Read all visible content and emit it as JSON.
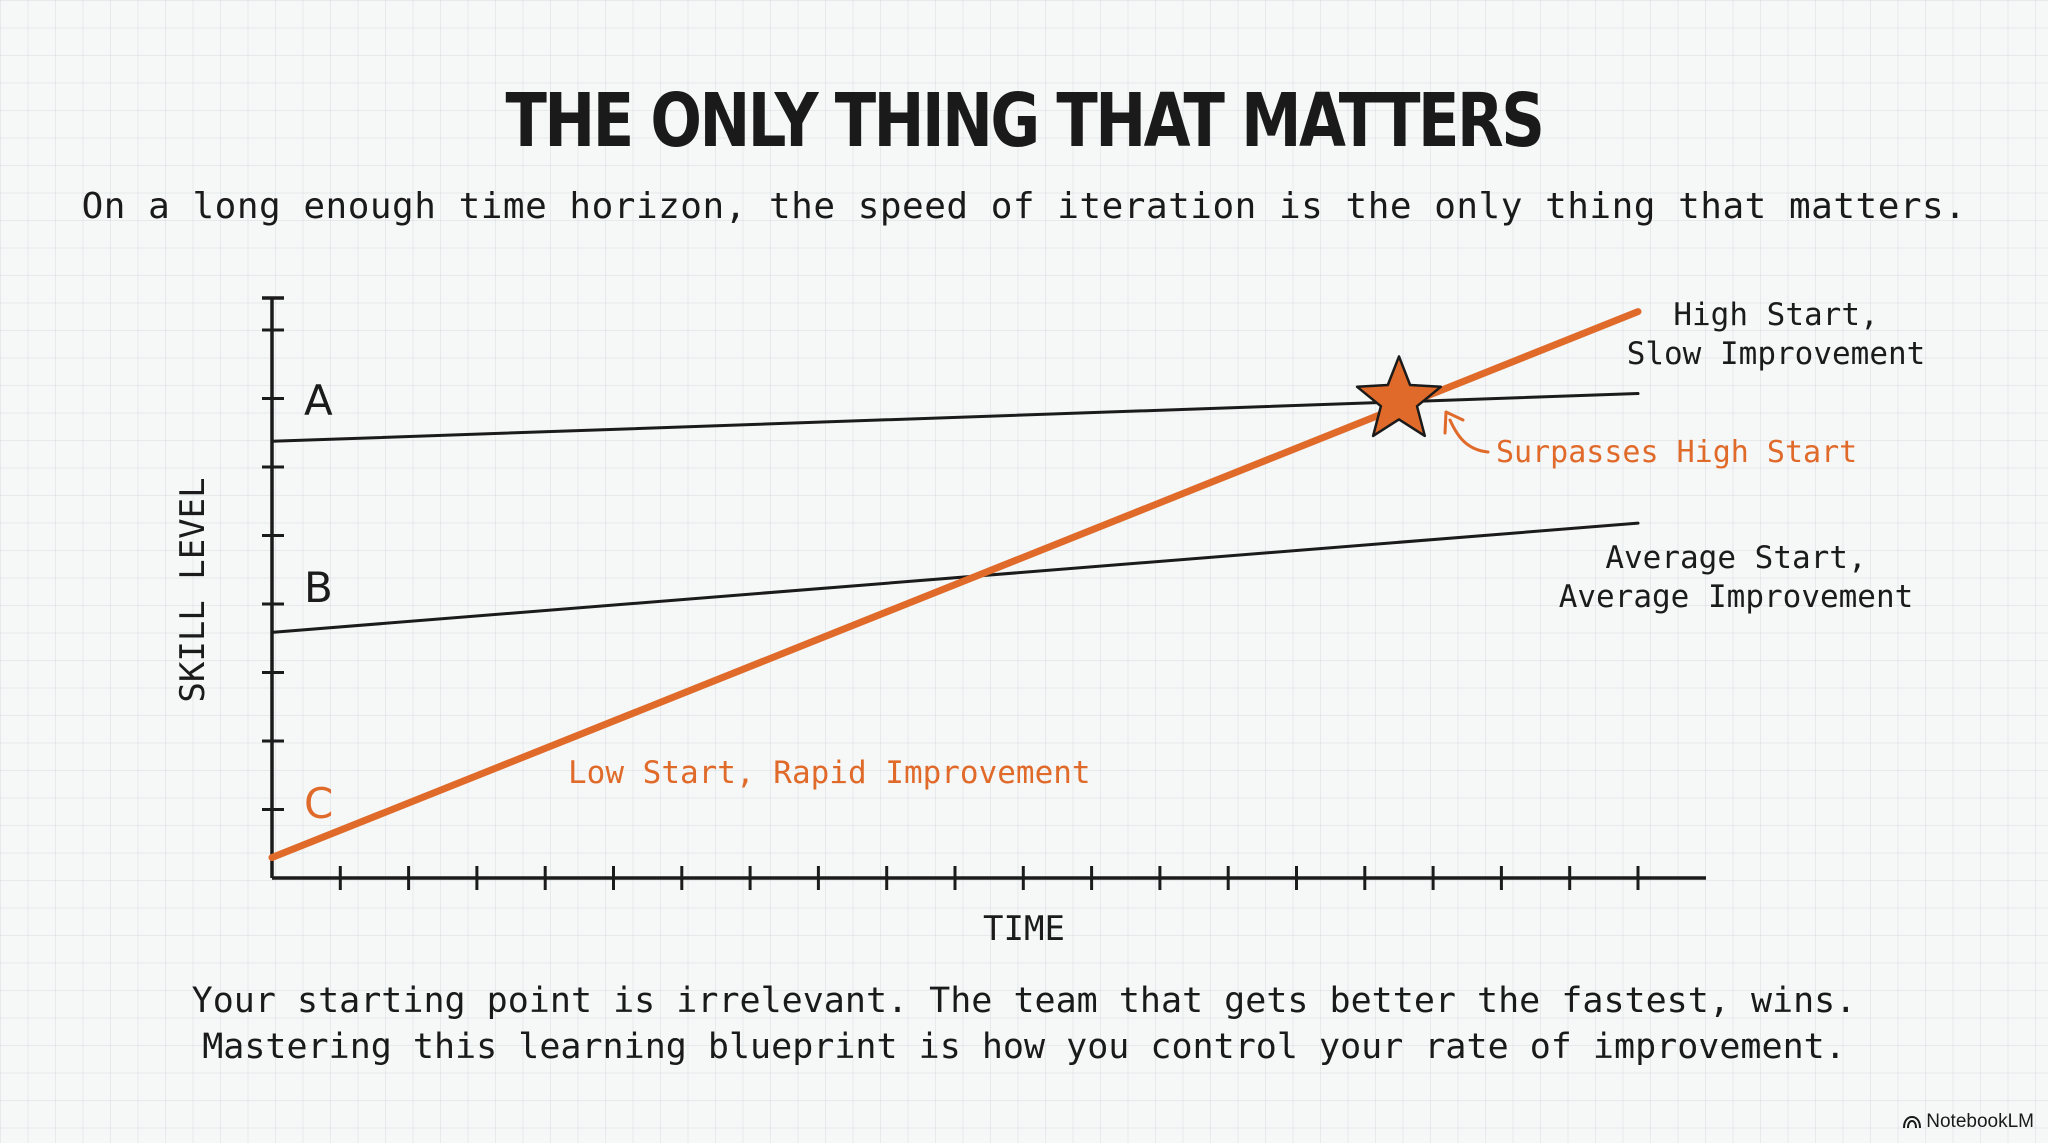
{
  "title": "THE ONLY THING THAT MATTERS",
  "subtitle": "On a long enough time horizon, the speed of iteration is the only thing that matters.",
  "footer": {
    "line1": "Your starting point is irrelevant. The team that gets better the fastest, wins.",
    "line2": "Mastering this learning blueprint is how you control your rate of improvement."
  },
  "brand": {
    "name": "NotebookLM",
    "icon": "notebooklm-logo-icon"
  },
  "colors": {
    "accent": "#e06a2a",
    "ink": "#1b1b1b",
    "background": "#f6f7f7"
  },
  "chart_data": {
    "type": "line",
    "xlabel": "TIME",
    "ylabel": "SKILL LEVEL",
    "xlim": [
      0,
      21
    ],
    "ylim": [
      0,
      8.5
    ],
    "x_ticks": 21,
    "y_ticks": 8,
    "tick_labels_shown": false,
    "grid": false,
    "series": [
      {
        "name": "A",
        "label": [
          "High Start,",
          "Slow Improvement"
        ],
        "color": "#1b1b1b",
        "x": [
          0,
          20
        ],
        "y": [
          6.4,
          7.1
        ]
      },
      {
        "name": "B",
        "label": [
          "Average Start,",
          "Average Improvement"
        ],
        "color": "#1b1b1b",
        "x": [
          0,
          20
        ],
        "y": [
          3.6,
          5.2
        ]
      },
      {
        "name": "C",
        "label": [
          "Low Start, Rapid Improvement"
        ],
        "color": "#e06a2a",
        "x": [
          0,
          20
        ],
        "y": [
          0.3,
          8.3
        ]
      }
    ],
    "annotations": [
      {
        "text": "Surpasses High Start",
        "marker": "star",
        "color": "#e06a2a",
        "x": 16.5,
        "y": 7.0
      }
    ]
  }
}
